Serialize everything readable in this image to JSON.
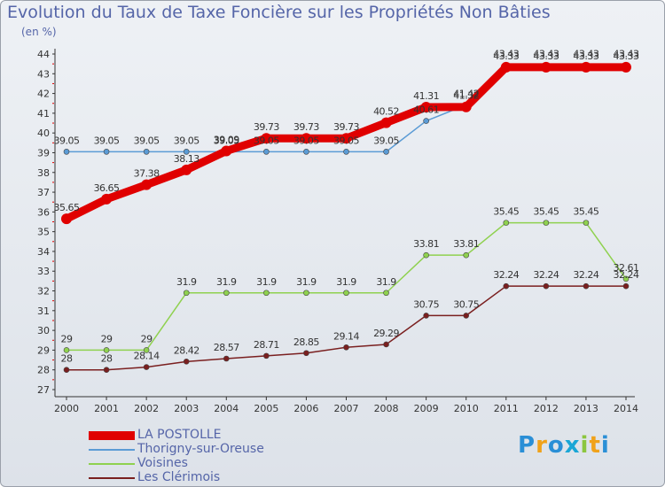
{
  "title": "Evolution du Taux de Taxe Foncière sur les Propriétés Non Bâties",
  "subtitle": "(en %)",
  "logo": {
    "text": "Proxiti",
    "colors": [
      "#2a8fd6",
      "#f0a21a",
      "#2a8fd6",
      "#1aa6d6",
      "#8cc63f",
      "#f0a21a",
      "#2a8fd6"
    ]
  },
  "chart_data": {
    "type": "line",
    "x": [
      2000,
      2001,
      2002,
      2003,
      2004,
      2005,
      2006,
      2007,
      2008,
      2009,
      2010,
      2011,
      2012,
      2013,
      2014
    ],
    "ylim": [
      27,
      44
    ],
    "yticks": [
      27,
      28,
      29,
      30,
      31,
      32,
      33,
      34,
      35,
      36,
      37,
      38,
      39,
      40,
      41,
      42,
      43,
      44
    ],
    "grid": false,
    "legend_position": "bottom-left",
    "series": [
      {
        "name": "LA POSTOLLE",
        "color": "#e00000",
        "values": [
          35.65,
          36.65,
          37.38,
          38.13,
          39.09,
          39.73,
          39.73,
          39.73,
          40.52,
          41.31,
          41.32,
          43.33,
          43.33,
          43.33,
          43.33
        ],
        "labels": [
          "35.65",
          "36.65",
          "37.38",
          "38.13",
          "39.09",
          "39.73",
          "39.73",
          "39.73",
          "40.52",
          "41.31",
          "41.32",
          "43.33",
          "43.33",
          "43.33",
          "43.33"
        ]
      },
      {
        "name": "Thorigny-sur-Oreuse",
        "color": "#5b9bd5",
        "values": [
          39.05,
          39.05,
          39.05,
          39.05,
          39.05,
          39.05,
          39.05,
          39.05,
          39.05,
          40.61,
          41.42,
          43.43,
          43.43,
          43.43,
          43.43
        ],
        "labels": [
          "39.05",
          "39.05",
          "39.05",
          "39.05",
          "39.05",
          "39.05",
          "39.05",
          "39.05",
          "39.05",
          "40.61",
          "41.42",
          "43.43",
          "43.43",
          "43.43",
          "43.43"
        ]
      },
      {
        "name": "Voisines",
        "color": "#8fd14f",
        "values": [
          29,
          29,
          29,
          31.9,
          31.9,
          31.9,
          31.9,
          31.9,
          31.9,
          33.81,
          33.81,
          35.45,
          35.45,
          35.45,
          32.61
        ],
        "labels": [
          "29",
          "29",
          "29",
          "31.9",
          "31.9",
          "31.9",
          "31.9",
          "31.9",
          "31.9",
          "33.81",
          "33.81",
          "35.45",
          "35.45",
          "35.45",
          "32.61"
        ]
      },
      {
        "name": "Les Clérimois",
        "color": "#7a1f1f",
        "values": [
          28,
          28,
          28.14,
          28.42,
          28.57,
          28.71,
          28.85,
          29.14,
          29.29,
          30.75,
          30.75,
          32.24,
          32.24,
          32.24,
          32.24
        ],
        "labels": [
          "28",
          "28",
          "28.14",
          "28.42",
          "28.57",
          "28.71",
          "28.85",
          "29.14",
          "29.29",
          "30.75",
          "30.75",
          "32.24",
          "32.24",
          "32.24",
          "32.24"
        ]
      }
    ]
  }
}
